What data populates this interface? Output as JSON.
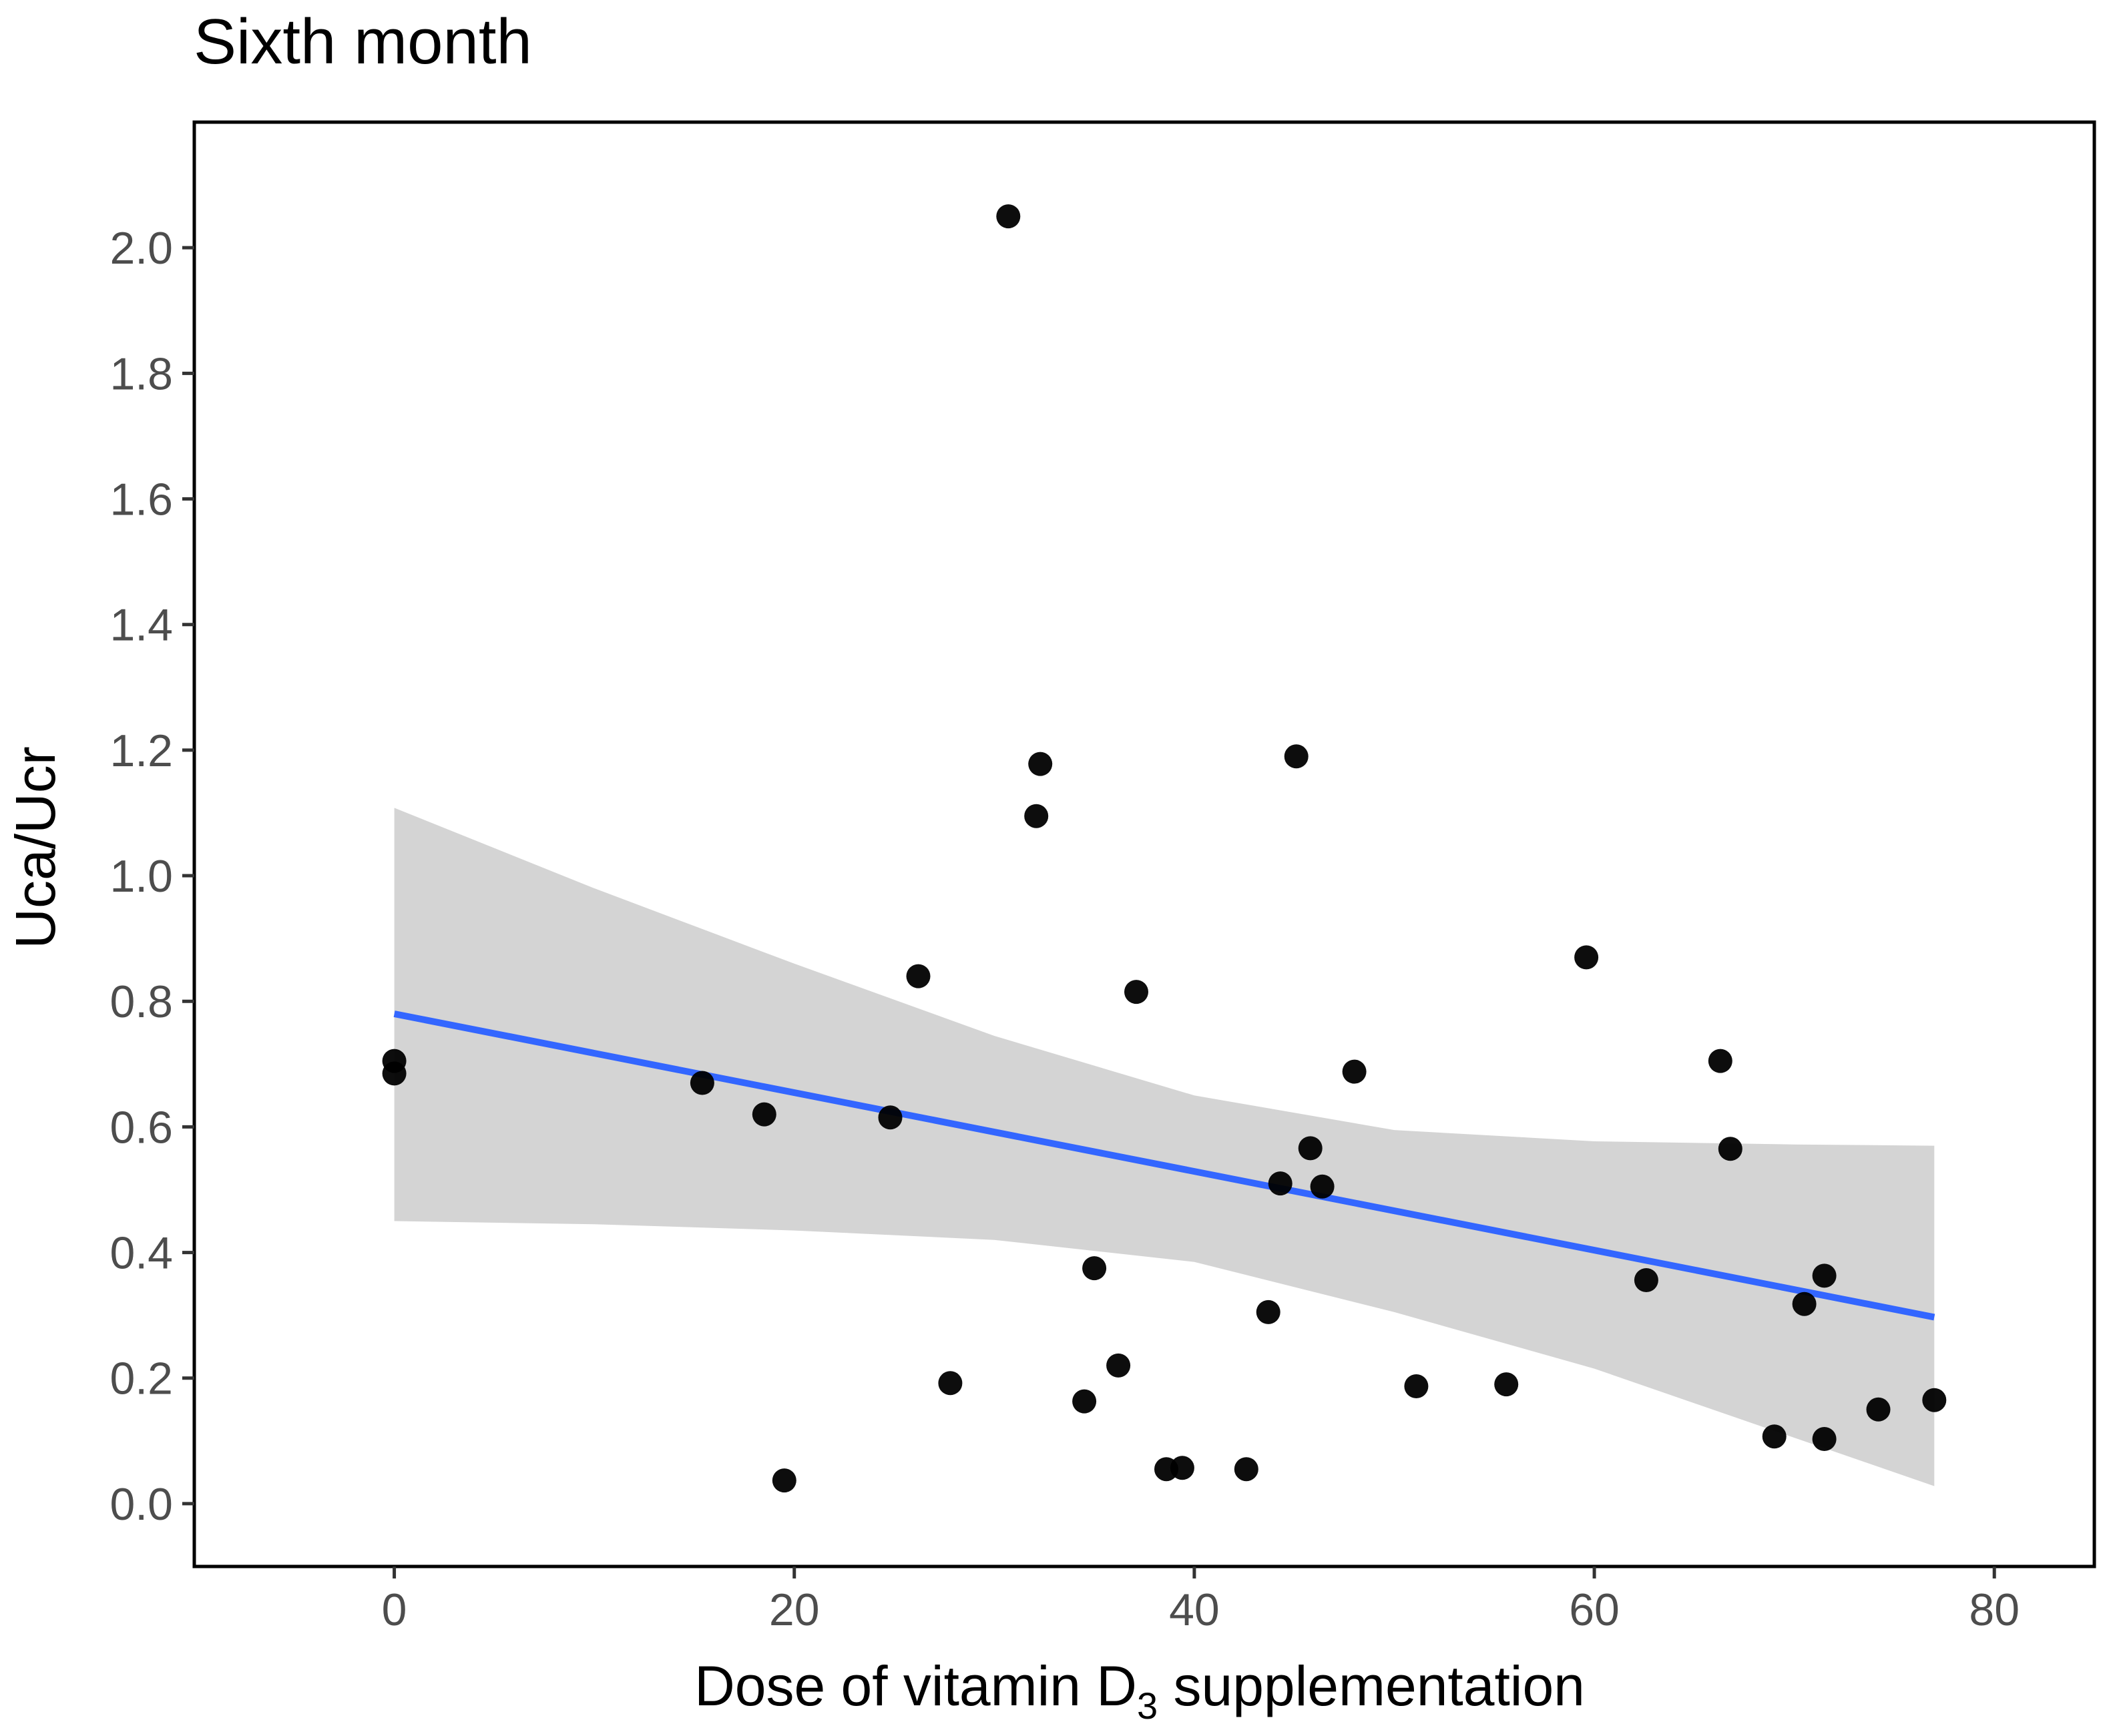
{
  "chart_data": {
    "type": "scatter",
    "title": "Sixth month",
    "xlabel_main": "Dose of vitamin  D",
    "xlabel_sub": "3",
    "xlabel_rest": " supplementation",
    "ylabel": "Uca/Ucr",
    "xlim": [
      -10,
      85
    ],
    "ylim": [
      -0.1,
      2.2
    ],
    "x_ticks": [
      0,
      20,
      40,
      60,
      80
    ],
    "x_tick_labels": [
      "0",
      "20",
      "40",
      "60",
      "80"
    ],
    "y_ticks": [
      0.0,
      0.2,
      0.4,
      0.6,
      0.8,
      1.0,
      1.2,
      1.4,
      1.6,
      1.8,
      2.0
    ],
    "y_tick_labels": [
      "0.0",
      "0.2",
      "0.4",
      "0.6",
      "0.8",
      "1.0",
      "1.2",
      "1.4",
      "1.6",
      "1.8",
      "2.0"
    ],
    "grid": false,
    "points": [
      {
        "x": 0,
        "y": 0.705
      },
      {
        "x": 0,
        "y": 0.685
      },
      {
        "x": 15.4,
        "y": 0.67
      },
      {
        "x": 18.5,
        "y": 0.62
      },
      {
        "x": 19.5,
        "y": 0.037
      },
      {
        "x": 24.8,
        "y": 0.615
      },
      {
        "x": 26.2,
        "y": 0.84
      },
      {
        "x": 27.8,
        "y": 0.192
      },
      {
        "x": 30.7,
        "y": 2.05
      },
      {
        "x": 32.1,
        "y": 1.095
      },
      {
        "x": 32.3,
        "y": 1.178
      },
      {
        "x": 34.5,
        "y": 0.163
      },
      {
        "x": 35.0,
        "y": 0.375
      },
      {
        "x": 36.2,
        "y": 0.22
      },
      {
        "x": 37.1,
        "y": 0.815
      },
      {
        "x": 38.6,
        "y": 0.055
      },
      {
        "x": 39.4,
        "y": 0.057
      },
      {
        "x": 42.6,
        "y": 0.055
      },
      {
        "x": 43.7,
        "y": 0.305
      },
      {
        "x": 44.3,
        "y": 0.51
      },
      {
        "x": 45.1,
        "y": 1.19
      },
      {
        "x": 45.8,
        "y": 0.566
      },
      {
        "x": 46.4,
        "y": 0.505
      },
      {
        "x": 48.0,
        "y": 0.688
      },
      {
        "x": 51.1,
        "y": 0.187
      },
      {
        "x": 55.6,
        "y": 0.19
      },
      {
        "x": 59.6,
        "y": 0.87
      },
      {
        "x": 62.6,
        "y": 0.356
      },
      {
        "x": 66.3,
        "y": 0.705
      },
      {
        "x": 66.8,
        "y": 0.565
      },
      {
        "x": 69.0,
        "y": 0.107
      },
      {
        "x": 70.5,
        "y": 0.318
      },
      {
        "x": 71.5,
        "y": 0.363
      },
      {
        "x": 71.5,
        "y": 0.103
      },
      {
        "x": 74.2,
        "y": 0.15
      },
      {
        "x": 77.0,
        "y": 0.165
      }
    ],
    "fit_line": {
      "x": [
        0,
        77
      ],
      "y": [
        0.78,
        0.297
      ],
      "color": "#3366ff"
    },
    "confidence_band": {
      "color": "#d4d4d4",
      "x": [
        0,
        10,
        20,
        30,
        40,
        50,
        60,
        70,
        77
      ],
      "upper": [
        1.108,
        0.98,
        0.86,
        0.745,
        0.65,
        0.595,
        0.577,
        0.572,
        0.57
      ],
      "lower": [
        0.45,
        0.445,
        0.435,
        0.42,
        0.385,
        0.305,
        0.215,
        0.105,
        0.028
      ]
    },
    "point_color": "#000000"
  }
}
